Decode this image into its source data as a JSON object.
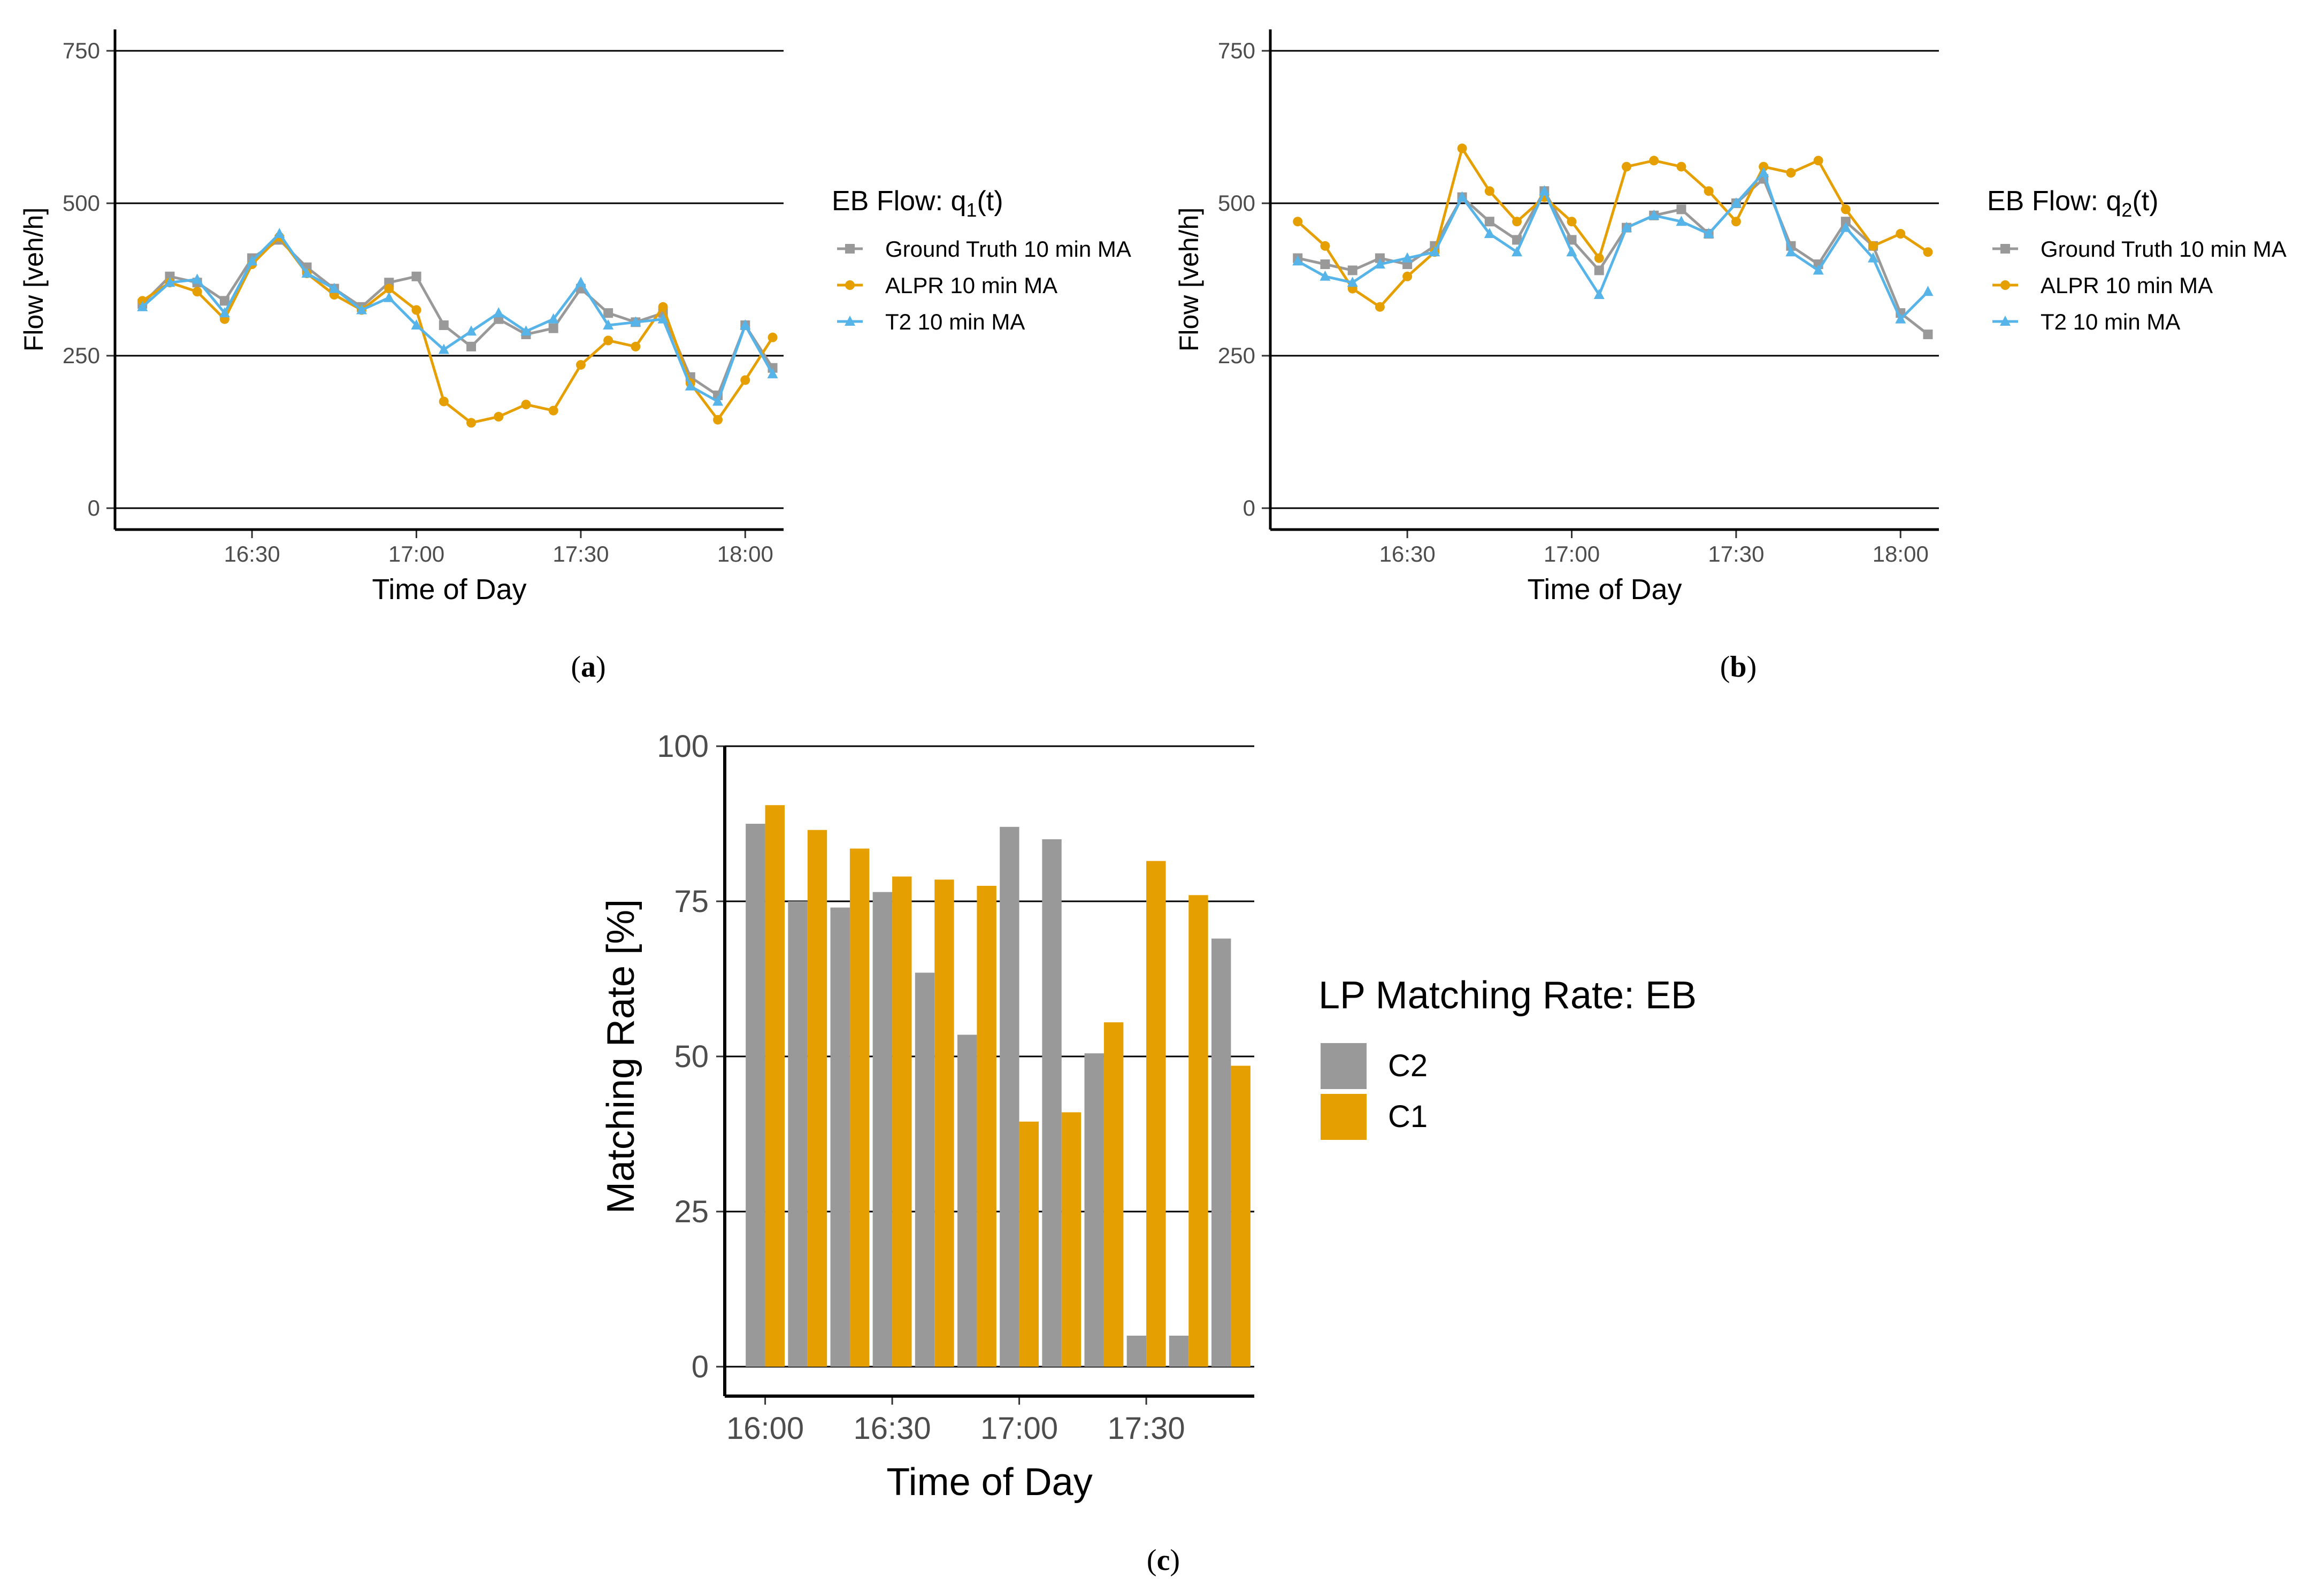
{
  "panels": [
    {
      "id": "a",
      "caption": "(a)",
      "chart_data": {
        "type": "line",
        "xlabel": "Time of Day",
        "ylabel": "Flow [veh/h]",
        "ylim": [
          0,
          750
        ],
        "xlim": [
          "16:05",
          "18:07"
        ],
        "yticks": [
          "0",
          "250",
          "500",
          "750"
        ],
        "xticks": [
          "16:30",
          "17:00",
          "17:30",
          "18:00"
        ],
        "legend_title": "EB Flow: q",
        "legend_title_sub": "1",
        "legend_title_tail": "(t)",
        "legend_position": "right",
        "series": [
          {
            "name": "Ground Truth 10 min MA",
            "color": "#999999",
            "marker": "square",
            "x": [
              "16:10",
              "16:15",
              "16:20",
              "16:25",
              "16:30",
              "16:35",
              "16:40",
              "16:45",
              "16:50",
              "16:55",
              "17:00",
              "17:05",
              "17:10",
              "17:15",
              "17:20",
              "17:25",
              "17:30",
              "17:35",
              "17:40",
              "17:45",
              "17:50",
              "17:55",
              "18:00",
              "18:05"
            ],
            "values": [
              335,
              380,
              370,
              340,
              410,
              440,
              395,
              360,
              330,
              370,
              380,
              300,
              265,
              310,
              285,
              295,
              360,
              320,
              305,
              320,
              215,
              185,
              300,
              230
            ]
          },
          {
            "name": "ALPR 10 min MA",
            "color": "#E69F00",
            "marker": "circle",
            "x": [
              "16:10",
              "16:15",
              "16:20",
              "16:25",
              "16:30",
              "16:35",
              "16:40",
              "16:45",
              "16:50",
              "16:55",
              "17:00",
              "17:05",
              "17:10",
              "17:15",
              "17:20",
              "17:25",
              "17:30",
              "17:35",
              "17:40",
              "17:45",
              "17:50",
              "17:55",
              "18:00",
              "18:05"
            ],
            "values": [
              340,
              370,
              355,
              310,
              400,
              445,
              385,
              350,
              325,
              360,
              325,
              175,
              140,
              150,
              170,
              160,
              235,
              275,
              265,
              330,
              205,
              145,
              210,
              280
            ]
          },
          {
            "name": "T2 10 min MA",
            "color": "#56B4E9",
            "marker": "triangle",
            "x": [
              "16:10",
              "16:15",
              "16:20",
              "16:25",
              "16:30",
              "16:35",
              "16:40",
              "16:45",
              "16:50",
              "16:55",
              "17:00",
              "17:05",
              "17:10",
              "17:15",
              "17:20",
              "17:25",
              "17:30",
              "17:35",
              "17:40",
              "17:45",
              "17:50",
              "17:55",
              "18:00",
              "18:05"
            ],
            "values": [
              330,
              370,
              375,
              320,
              405,
              450,
              385,
              360,
              325,
              345,
              300,
              260,
              290,
              320,
              290,
              310,
              370,
              300,
              305,
              310,
              200,
              175,
              300,
              220
            ]
          }
        ]
      }
    },
    {
      "id": "b",
      "caption": "(b)",
      "chart_data": {
        "type": "line",
        "xlabel": "Time of Day",
        "ylabel": "Flow [veh/h]",
        "ylim": [
          0,
          750
        ],
        "xlim": [
          "16:05",
          "18:07"
        ],
        "yticks": [
          "0",
          "250",
          "500",
          "750"
        ],
        "xticks": [
          "16:30",
          "17:00",
          "17:30",
          "18:00"
        ],
        "legend_title": "EB Flow: q",
        "legend_title_sub": "2",
        "legend_title_tail": "(t)",
        "legend_position": "right",
        "series": [
          {
            "name": "Ground Truth 10 min MA",
            "color": "#999999",
            "marker": "square",
            "x": [
              "16:10",
              "16:15",
              "16:20",
              "16:25",
              "16:30",
              "16:35",
              "16:40",
              "16:45",
              "16:50",
              "16:55",
              "17:00",
              "17:05",
              "17:10",
              "17:15",
              "17:20",
              "17:25",
              "17:30",
              "17:35",
              "17:40",
              "17:45",
              "17:50",
              "17:55",
              "18:00",
              "18:05"
            ],
            "values": [
              410,
              400,
              390,
              410,
              400,
              430,
              510,
              470,
              440,
              520,
              440,
              390,
              460,
              480,
              490,
              450,
              500,
              540,
              430,
              400,
              470,
              430,
              320,
              285
            ]
          },
          {
            "name": "ALPR 10 min MA",
            "color": "#E69F00",
            "marker": "circle",
            "x": [
              "16:10",
              "16:15",
              "16:20",
              "16:25",
              "16:30",
              "16:35",
              "16:40",
              "16:45",
              "16:50",
              "16:55",
              "17:00",
              "17:05",
              "17:10",
              "17:15",
              "17:20",
              "17:25",
              "17:30",
              "17:35",
              "17:40",
              "17:45",
              "17:50",
              "17:55",
              "18:00",
              "18:05"
            ],
            "values": [
              470,
              430,
              360,
              330,
              380,
              420,
              590,
              520,
              470,
              510,
              470,
              410,
              560,
              570,
              560,
              520,
              470,
              560,
              550,
              570,
              490,
              430,
              450,
              420
            ]
          },
          {
            "name": "T2 10 min MA",
            "color": "#56B4E9",
            "marker": "triangle",
            "x": [
              "16:10",
              "16:15",
              "16:20",
              "16:25",
              "16:30",
              "16:35",
              "16:40",
              "16:45",
              "16:50",
              "16:55",
              "17:00",
              "17:05",
              "17:10",
              "17:15",
              "17:20",
              "17:25",
              "17:30",
              "17:35",
              "17:40",
              "17:45",
              "17:50",
              "17:55",
              "18:00",
              "18:05"
            ],
            "values": [
              405,
              380,
              370,
              400,
              410,
              420,
              510,
              450,
              420,
              520,
              420,
              350,
              460,
              480,
              470,
              450,
              500,
              550,
              420,
              390,
              460,
              410,
              310,
              355
            ]
          }
        ]
      }
    },
    {
      "id": "c",
      "caption": "(c)",
      "chart_data": {
        "type": "bar",
        "xlabel": "Time of Day",
        "ylabel": "Matching Rate [%]",
        "ylim": [
          0,
          100
        ],
        "yticks": [
          "0",
          "25",
          "50",
          "75",
          "100"
        ],
        "xticks": [
          "16:00",
          "16:30",
          "17:00",
          "17:30"
        ],
        "categories": [
          "16:00",
          "16:10",
          "16:20",
          "16:30",
          "16:40",
          "16:50",
          "17:00",
          "17:10",
          "17:20",
          "17:30",
          "17:40",
          "17:50"
        ],
        "legend_title": "LP Matching Rate: EB",
        "legend_position": "right",
        "series": [
          {
            "name": "C2",
            "color": "#999999",
            "values": [
              87.5,
              75,
              74,
              76.5,
              63.5,
              53.5,
              87,
              85,
              50.5,
              5,
              5,
              69
            ]
          },
          {
            "name": "C1",
            "color": "#E69F00",
            "values": [
              90.5,
              86.5,
              83.5,
              79,
              78.5,
              77.5,
              39.5,
              41,
              55.5,
              81.5,
              76,
              48.5
            ]
          }
        ]
      }
    }
  ]
}
